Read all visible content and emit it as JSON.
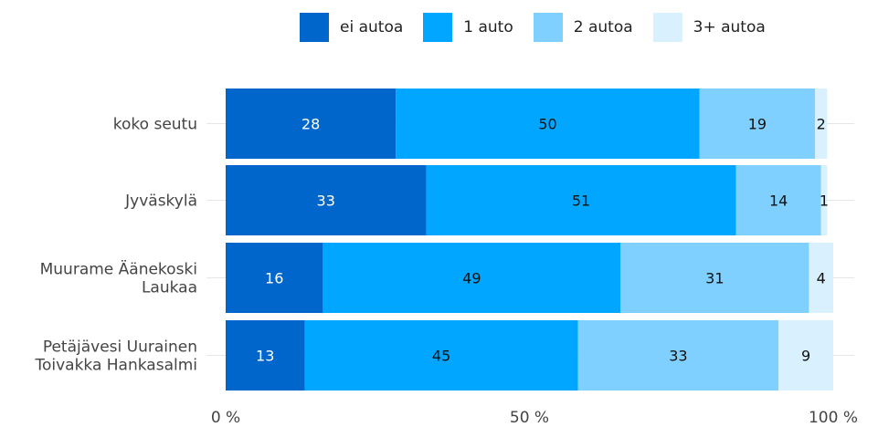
{
  "chart_data": {
    "type": "bar",
    "orientation": "horizontal",
    "stacked": true,
    "categories": [
      "koko seutu",
      "Jyväskylä",
      "Muurame Äänekoski\nLaukaa",
      "Petäjävesi Uurainen\nToivakka Hankasalmi"
    ],
    "series": [
      {
        "name": "ei autoa",
        "color": "#0066cc",
        "values": [
          28,
          33,
          16,
          13
        ]
      },
      {
        "name": "1 auto",
        "color": "#00a6ff",
        "values": [
          50,
          51,
          49,
          45
        ]
      },
      {
        "name": "2 autoa",
        "color": "#80d0ff",
        "values": [
          19,
          14,
          31,
          33
        ]
      },
      {
        "name": "3+ autoa",
        "color": "#d9f0ff",
        "values": [
          2,
          1,
          4,
          9
        ]
      }
    ],
    "x_ticks": [
      "0 %",
      "50 %",
      "100 %"
    ],
    "xlim": [
      0,
      100
    ],
    "legend_position": "top",
    "grid": true
  }
}
